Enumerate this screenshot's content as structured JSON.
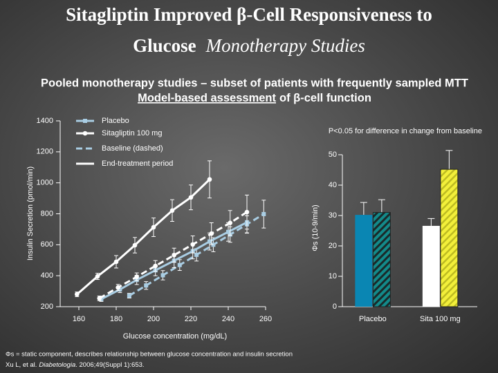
{
  "title": "Sitagliptin Improved β-Cell Responsiveness to",
  "title_line2": "Glucose",
  "title_italic": "Monotherapy Studies",
  "subtitle_line1": "Pooled monotherapy studies – subset of patients with frequently sampled MTT",
  "subtitle_underlined": "Model-based assessment",
  "subtitle_rest": "of β-cell function",
  "footnote": "Φs = static component, describes relationship between glucose concentration and insulin secretion",
  "citation_authors": "Xu L, et al.",
  "citation_journal": "Diabetologia",
  "citation_rest": ". 2006;49(Suppl 1):653.",
  "chart_data": [
    {
      "type": "line",
      "y_label": "Insulin Secretion (pmol/min)",
      "x_label": "Glucose concentration (mg/dL)",
      "annotation": "P<0.05 for difference in change from baseline",
      "xlim": [
        150,
        260
      ],
      "xticks": [
        160,
        180,
        200,
        220,
        240,
        260
      ],
      "ylim": [
        200,
        1400
      ],
      "yticks": [
        200,
        400,
        600,
        800,
        1000,
        1200,
        1400
      ],
      "legend": [
        {
          "label": "Placebo",
          "color": "#a9cde3",
          "marker": "square",
          "dashed": false
        },
        {
          "label": "Sitagliptin 100 mg",
          "color": "#ffffff",
          "marker": "circle",
          "dashed": false
        },
        {
          "label": "Baseline (dashed)",
          "color": "#a9cde3",
          "dashed": true
        },
        {
          "label": "End-treatment period",
          "color": "#ffffff",
          "dashed": false
        }
      ],
      "series": [
        {
          "color": "#a9cde3",
          "marker": "square",
          "dashed": true,
          "x": [
            187,
            196,
            205,
            214,
            223,
            232,
            241,
            250,
            259
          ],
          "values": [
            271,
            337,
            403,
            469,
            535,
            600,
            666,
            732,
            798
          ],
          "errors": [
            15,
            25,
            30,
            35,
            40,
            45,
            50,
            55,
            90
          ]
        },
        {
          "color": "#a9cde3",
          "marker": "square",
          "dashed": false,
          "x": [
            172,
            182,
            191,
            201,
            211,
            221,
            230,
            240,
            250
          ],
          "values": [
            249,
            311,
            373,
            435,
            497,
            559,
            621,
            683,
            745
          ],
          "errors": [
            15,
            20,
            30,
            35,
            45,
            50,
            55,
            60,
            70
          ]
        },
        {
          "color": "#ffffff",
          "marker": "circle",
          "dashed": true,
          "x": [
            171,
            181,
            191,
            201,
            211,
            221,
            231,
            241,
            250
          ],
          "values": [
            254,
            324,
            393,
            463,
            533,
            602,
            672,
            741,
            811
          ],
          "errors": [
            15,
            20,
            25,
            35,
            45,
            55,
            70,
            80,
            110
          ]
        },
        {
          "color": "#ffffff",
          "marker": "circle",
          "dashed": false,
          "x": [
            159,
            170,
            180,
            190,
            200,
            210,
            220,
            230
          ],
          "values": [
            280,
            396,
            490,
            597,
            713,
            821,
            906,
            1022
          ],
          "errors": [
            15,
            20,
            40,
            50,
            60,
            70,
            80,
            120
          ]
        }
      ]
    },
    {
      "type": "bar",
      "y_label": "Φs (10-9/min)",
      "categories": [
        "Placebo",
        "Sita 100 mg"
      ],
      "ylim": [
        0,
        50
      ],
      "yticks": [
        0,
        10,
        20,
        30,
        40,
        50
      ],
      "series": [
        {
          "colors": [
            "#0a86b3",
            "#ffffff"
          ],
          "hatch": false,
          "values": [
            30.2,
            26.6
          ],
          "errors": [
            4.1,
            2.4
          ]
        },
        {
          "colors": [
            "#138a8a",
            "#f2ef3a"
          ],
          "hatch": true,
          "values": [
            31.0,
            45.2
          ],
          "errors": [
            4.2,
            6.2
          ]
        }
      ]
    }
  ]
}
